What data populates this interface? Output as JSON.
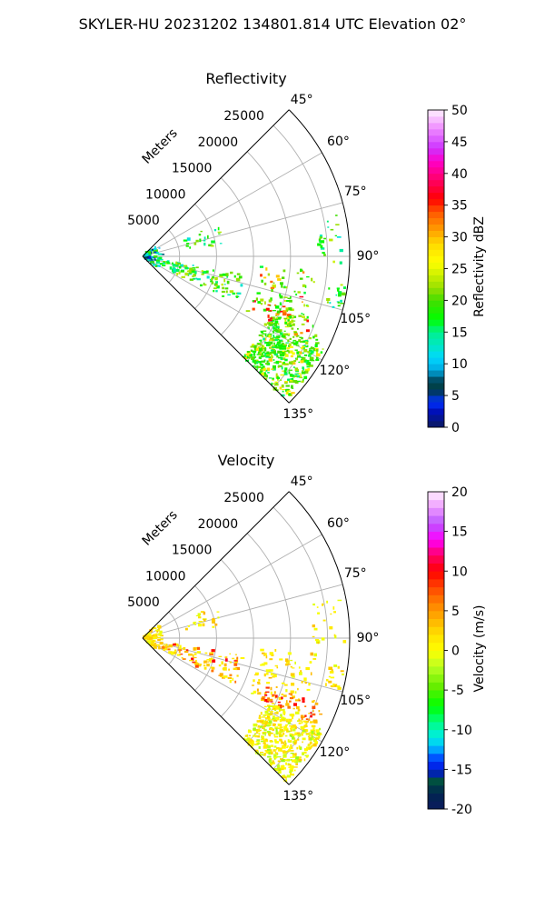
{
  "figure": {
    "suptitle": "SKYLER-HU  20231202  134801.814 UTC Elevation 02°"
  },
  "chart_data": [
    {
      "type": "polar-sector",
      "title": "Reflectivity",
      "radial_label": "Meters",
      "radial_ticks": [
        "5000",
        "10000",
        "15000",
        "20000",
        "25000"
      ],
      "angular_ticks": [
        "45°",
        "60°",
        "75°",
        "90°",
        "105°",
        "120°",
        "135°"
      ],
      "theta_range_deg": [
        45,
        135
      ],
      "r_max_m": 28000,
      "grid": true,
      "colorbar": {
        "label": "Reflectivity dBZ",
        "ticks": [
          "0",
          "5",
          "10",
          "15",
          "20",
          "25",
          "30",
          "35",
          "40",
          "45",
          "50"
        ],
        "range": [
          0,
          50
        ]
      },
      "dominant_values": "10–25 dBZ; scattered 30–40 dBZ cells near 110–115° at 20–25 km"
    },
    {
      "type": "polar-sector",
      "title": "Velocity",
      "radial_label": "Meters",
      "radial_ticks": [
        "5000",
        "10000",
        "15000",
        "20000",
        "25000"
      ],
      "angular_ticks": [
        "45°",
        "60°",
        "75°",
        "90°",
        "105°",
        "120°",
        "135°"
      ],
      "theta_range_deg": [
        45,
        135
      ],
      "r_max_m": 28000,
      "grid": true,
      "colorbar": {
        "label": "Velocity (m/s)",
        "ticks": [
          "-20",
          "-15",
          "-10",
          "-5",
          "0",
          "5",
          "10",
          "15",
          "20"
        ],
        "range": [
          -20,
          20
        ]
      },
      "dominant_values": "near 0 to +3 m/s; scattered +5 to +10 m/s returns"
    }
  ]
}
